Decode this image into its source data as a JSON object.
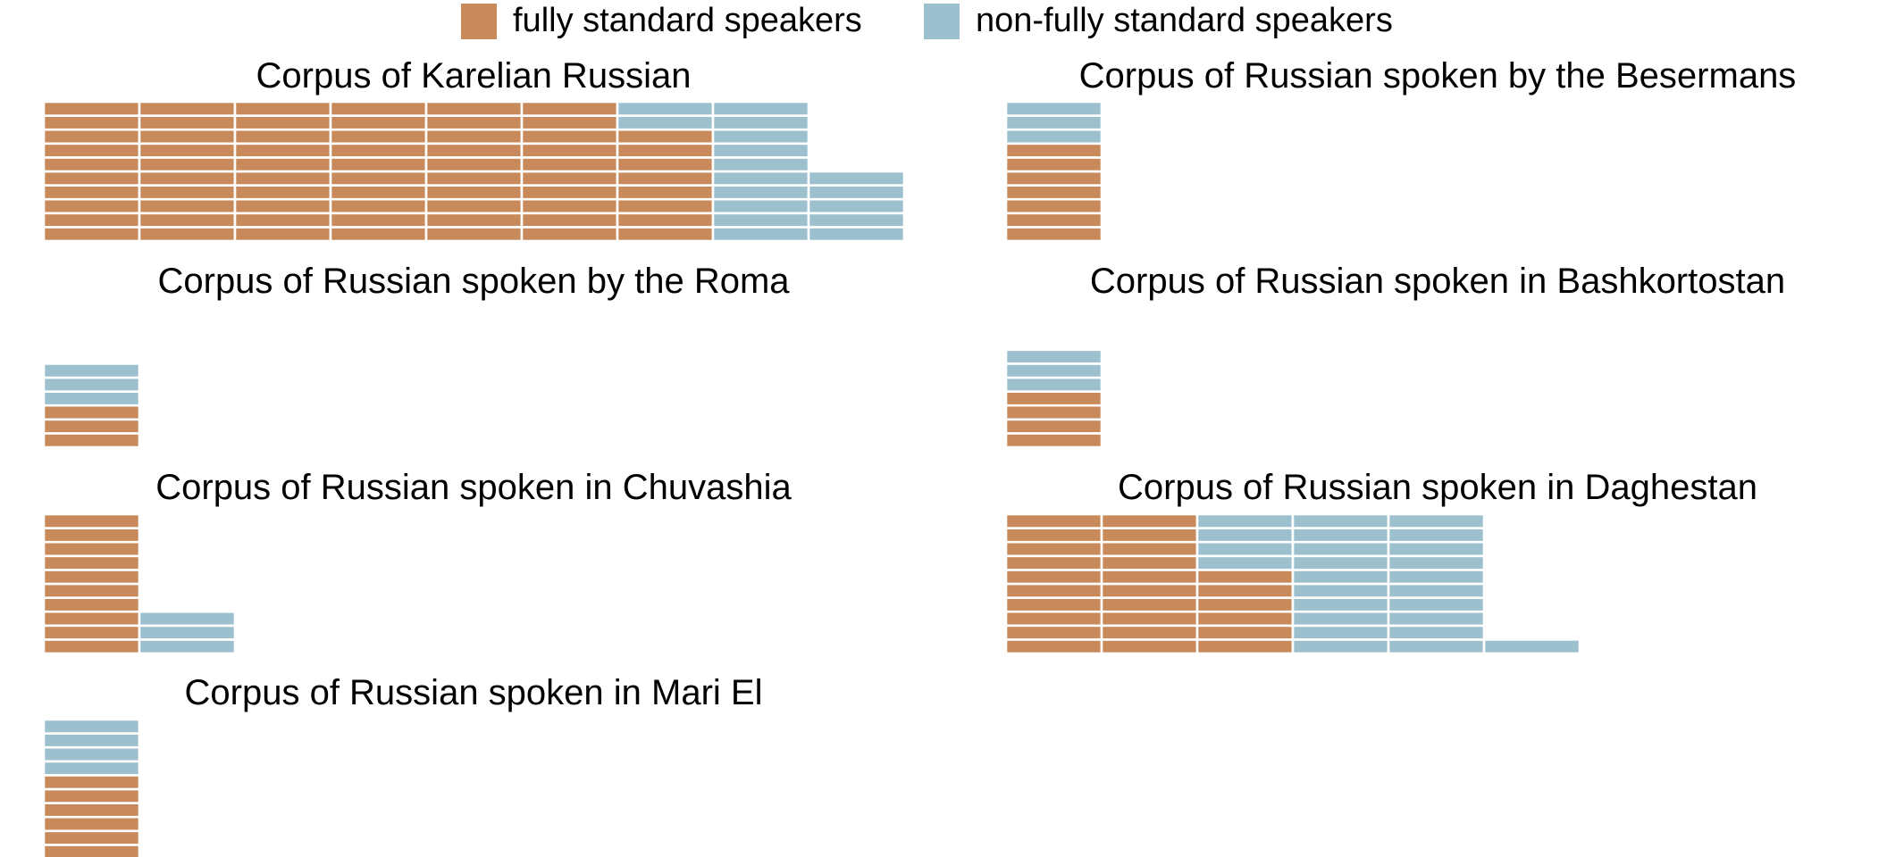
{
  "legend": {
    "items": [
      {
        "label": "fully standard speakers",
        "color": "#C88A5A"
      },
      {
        "label": "non-fully standard speakers",
        "color": "#9CC0CD"
      }
    ]
  },
  "chart_data": [
    {
      "type": "waffle",
      "title": "Corpus of Karelian Russian",
      "fully_standard": 68,
      "non_fully_standard": 17
    },
    {
      "type": "waffle",
      "title": "Corpus of Russian spoken by the Besermans",
      "fully_standard": 7,
      "non_fully_standard": 3
    },
    {
      "type": "waffle",
      "title": "Corpus of Russian spoken by the Roma",
      "fully_standard": 3,
      "non_fully_standard": 3
    },
    {
      "type": "waffle",
      "title": "Corpus of Russian spoken in Bashkortostan",
      "fully_standard": 4,
      "non_fully_standard": 3
    },
    {
      "type": "waffle",
      "title": "Corpus of Russian spoken in Chuvashia",
      "fully_standard": 10,
      "non_fully_standard": 3
    },
    {
      "type": "waffle",
      "title": "Corpus of Russian spoken in Daghestan",
      "fully_standard": 26,
      "non_fully_standard": 25
    },
    {
      "type": "waffle",
      "title": "Corpus of Russian spoken in Mari El",
      "fully_standard": 6,
      "non_fully_standard": 4
    }
  ]
}
